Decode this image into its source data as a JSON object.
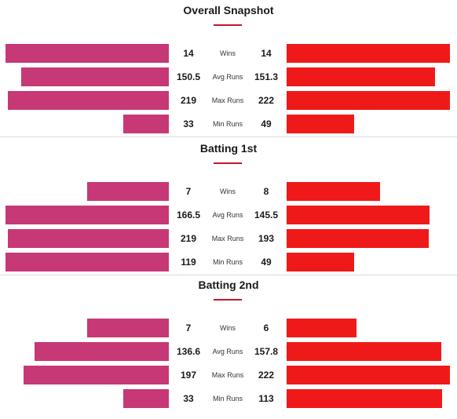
{
  "colors": {
    "team_a": "#c73876",
    "team_b": "#f01919",
    "accent": "#c2172f"
  },
  "max_runs_scale": 222,
  "sections": [
    {
      "title": "Overall Snapshot",
      "rows": [
        {
          "label": "Wins",
          "left": "14",
          "right": "14"
        },
        {
          "label": "Avg Runs",
          "left": "150.5",
          "right": "151.3"
        },
        {
          "label": "Max Runs",
          "left": "219",
          "right": "222"
        },
        {
          "label": "Min Runs",
          "left": "33",
          "right": "49"
        }
      ]
    },
    {
      "title": "Batting 1st",
      "rows": [
        {
          "label": "Wins",
          "left": "7",
          "right": "8"
        },
        {
          "label": "Avg Runs",
          "left": "166.5",
          "right": "145.5"
        },
        {
          "label": "Max Runs",
          "left": "219",
          "right": "193"
        },
        {
          "label": "Min Runs",
          "left": "119",
          "right": "49"
        }
      ]
    },
    {
      "title": "Batting 2nd",
      "rows": [
        {
          "label": "Wins",
          "left": "7",
          "right": "6"
        },
        {
          "label": "Avg Runs",
          "left": "136.6",
          "right": "157.8"
        },
        {
          "label": "Max Runs",
          "left": "197",
          "right": "222"
        },
        {
          "label": "Min Runs",
          "left": "33",
          "right": "113"
        }
      ]
    }
  ]
}
